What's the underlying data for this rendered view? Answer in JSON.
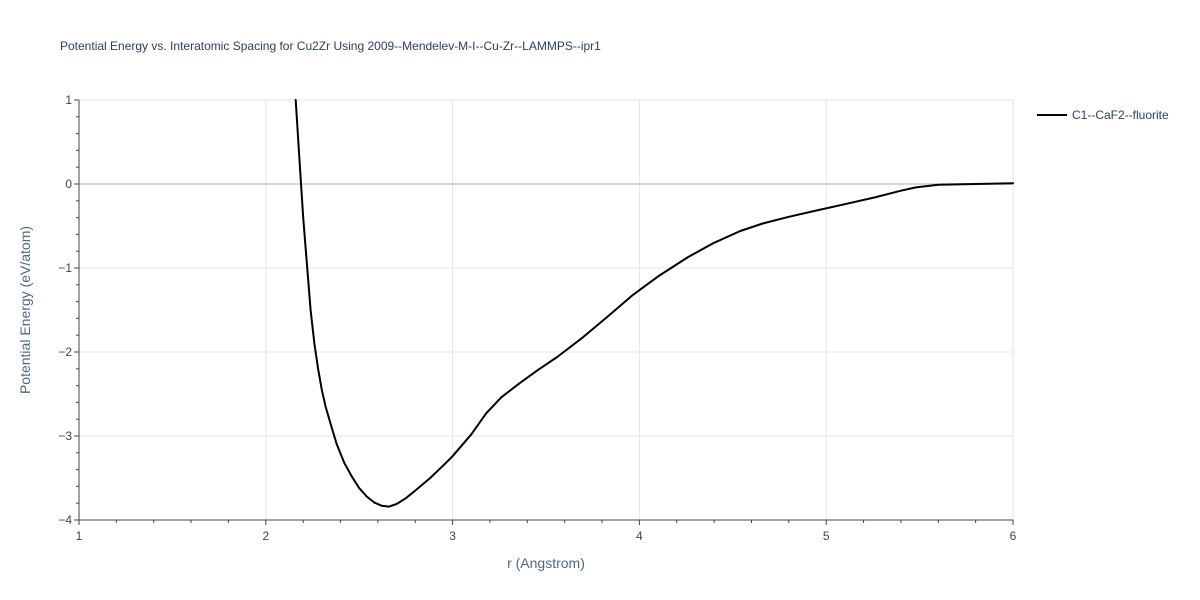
{
  "chart_data": {
    "type": "line",
    "title": "Potential Energy vs. Interatomic Spacing for Cu2Zr Using 2009--Mendelev-M-I--Cu-Zr--LAMMPS--ipr1",
    "xlabel": "r (Angstrom)",
    "ylabel": "Potential Energy (eV/atom)",
    "xlim": [
      1,
      6
    ],
    "ylim": [
      -4,
      1
    ],
    "x_ticks": [
      1,
      2,
      3,
      4,
      5,
      6
    ],
    "x_tick_labels": [
      "1",
      "2",
      "3",
      "4",
      "5",
      "6"
    ],
    "y_ticks": [
      -4,
      -3,
      -2,
      -1,
      0,
      1
    ],
    "y_tick_labels": [
      "−4",
      "−3",
      "−2",
      "−1",
      "0",
      "1"
    ],
    "grid": true,
    "legend_position": "top-right",
    "series": [
      {
        "name": "C1--CaF2--fluorite",
        "color": "#000000",
        "x": [
          2.16,
          2.18,
          2.2,
          2.22,
          2.24,
          2.26,
          2.28,
          2.3,
          2.32,
          2.35,
          2.38,
          2.42,
          2.46,
          2.5,
          2.54,
          2.58,
          2.62,
          2.66,
          2.7,
          2.75,
          2.8,
          2.88,
          2.96,
          3.0,
          3.1,
          3.18,
          3.26,
          3.36,
          3.46,
          3.56,
          3.7,
          3.84,
          3.96,
          4.1,
          4.26,
          4.4,
          4.54,
          4.66,
          4.8,
          4.96,
          5.1,
          5.26,
          5.4,
          5.48,
          5.6,
          5.8,
          6.0
        ],
        "y": [
          1.0,
          0.3,
          -0.4,
          -0.95,
          -1.5,
          -1.9,
          -2.2,
          -2.45,
          -2.65,
          -2.88,
          -3.1,
          -3.32,
          -3.48,
          -3.62,
          -3.72,
          -3.79,
          -3.83,
          -3.84,
          -3.81,
          -3.74,
          -3.65,
          -3.5,
          -3.33,
          -3.24,
          -2.98,
          -2.73,
          -2.54,
          -2.37,
          -2.21,
          -2.06,
          -1.82,
          -1.56,
          -1.33,
          -1.1,
          -0.87,
          -0.7,
          -0.56,
          -0.47,
          -0.39,
          -0.31,
          -0.24,
          -0.16,
          -0.08,
          -0.04,
          -0.01,
          0.0,
          0.01
        ]
      }
    ]
  }
}
